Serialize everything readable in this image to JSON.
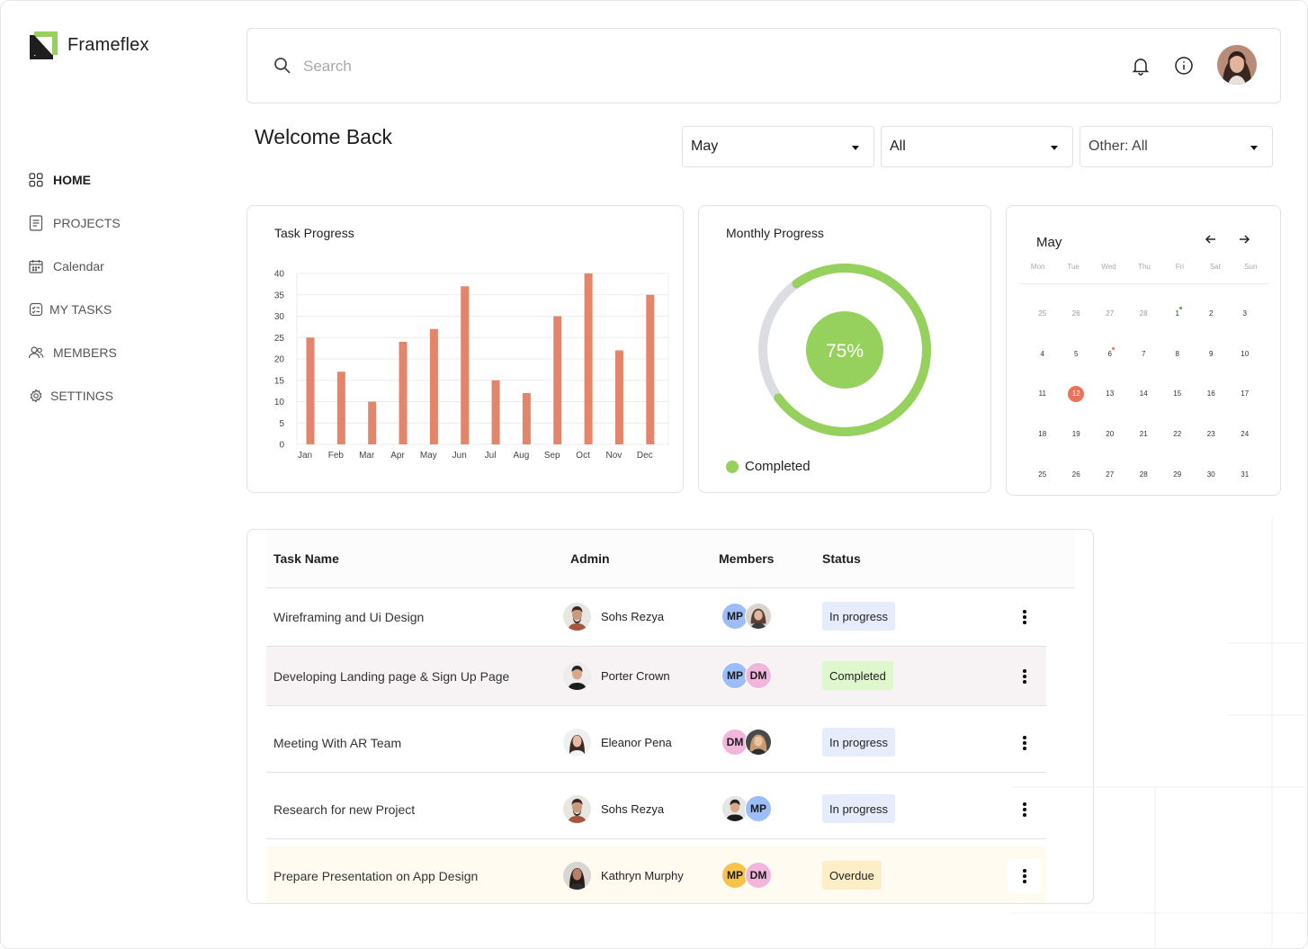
{
  "app": {
    "name": "Frameflex"
  },
  "sidebar": {
    "items": [
      {
        "label": "HOME",
        "icon": "grid-icon",
        "active": true
      },
      {
        "label": "PROJECTS",
        "icon": "document-icon",
        "active": false
      },
      {
        "label": "Calendar",
        "icon": "calendar-icon",
        "active": false
      },
      {
        "label": "MY TASKS",
        "icon": "task-icon",
        "active": false
      },
      {
        "label": "MEMBERS",
        "icon": "members-icon",
        "active": false
      },
      {
        "label": "SETTINGS",
        "icon": "gear-icon",
        "active": false
      }
    ]
  },
  "header": {
    "search_placeholder": "Search",
    "search_value": ""
  },
  "welcome": "Welcome Back",
  "filters": [
    {
      "value": "May"
    },
    {
      "value": "All"
    },
    {
      "value": "Other: All"
    }
  ],
  "task_progress": {
    "title": "Task Progress"
  },
  "chart_data": {
    "type": "bar",
    "title": "Task Progress",
    "categories": [
      "Jan",
      "Feb",
      "Mar",
      "Apr",
      "May",
      "Jun",
      "Jul",
      "Aug",
      "Sep",
      "Oct",
      "Nov",
      "Dec"
    ],
    "values": [
      25,
      17,
      10,
      24,
      27,
      37,
      15,
      12,
      30,
      40,
      22,
      35
    ],
    "yticks": [
      0,
      5,
      10,
      15,
      20,
      25,
      30,
      35,
      40
    ],
    "ylim": [
      0,
      40
    ],
    "grid": true,
    "color": "#e4846a"
  },
  "monthly_progress": {
    "title": "Monthly Progress",
    "percent_label": "75%",
    "percent": 0.75,
    "legend": "Completed",
    "color": "#95d15c",
    "track_color": "#dcdde3"
  },
  "calendar": {
    "month": "May",
    "weekdays": [
      "Mon",
      "Tue",
      "Wed",
      "Thu",
      "Fri",
      "Sat",
      "Sun"
    ],
    "weeks": [
      [
        "25",
        "26",
        "27",
        "28",
        "1",
        "2",
        "3"
      ],
      [
        "4",
        "5",
        "6",
        "7",
        "8",
        "9",
        "10"
      ],
      [
        "11",
        "12",
        "13",
        "14",
        "15",
        "16",
        "17"
      ],
      [
        "18",
        "19",
        "20",
        "21",
        "22",
        "23",
        "24"
      ],
      [
        "25",
        "26",
        "27",
        "28",
        "29",
        "30",
        "31"
      ]
    ],
    "today": "12",
    "today_color": "#e9735a"
  },
  "table": {
    "headers": {
      "task": "Task Name",
      "admin": "Admin",
      "members": "Members",
      "status": "Status"
    },
    "rows": [
      {
        "task": "Wireframing and Ui Design",
        "admin": "Sohs Rezya",
        "m1": "MP",
        "m2": "",
        "status": "In progress"
      },
      {
        "task": "Developing Landing page & Sign Up Page",
        "admin": "Porter Crown",
        "m1": "MP",
        "m2": "DM",
        "status": "Completed"
      },
      {
        "task": "Meeting With AR Team",
        "admin": "Eleanor Pena",
        "m1": "DM",
        "m2": "",
        "status": "In progress"
      },
      {
        "task": "Research for new Project",
        "admin": "Sohs Rezya",
        "m1": "",
        "m2": "MP",
        "status": "In progress"
      },
      {
        "task": "Prepare Presentation  on App Design",
        "admin": "Kathryn Murphy",
        "m1": "MP",
        "m2": "DM",
        "status": "Overdue"
      }
    ]
  }
}
